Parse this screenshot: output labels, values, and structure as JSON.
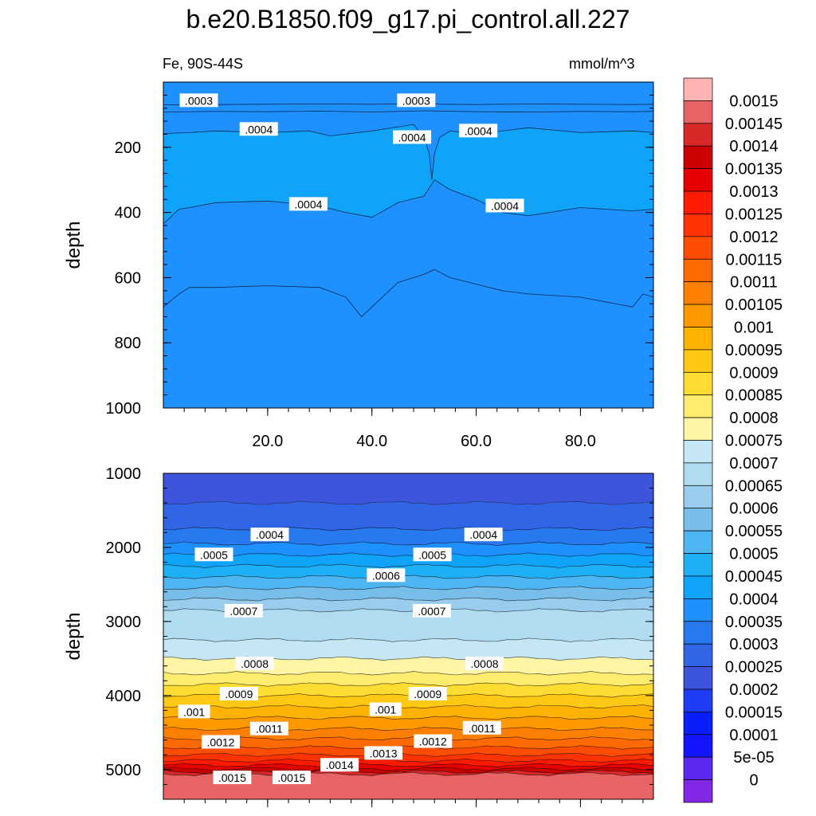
{
  "title": "b.e20.B1850.f09_g17.pi_control.all.227",
  "left_subtitle": "Fe, 90S-44S",
  "right_subtitle": "mmol/m^3",
  "chart_data": [
    {
      "type": "contour",
      "panel": "upper",
      "variable": "Fe",
      "units": "mmol/m^3",
      "ylabel": "depth",
      "ylim": [
        1000,
        0
      ],
      "y_ticks": [
        200,
        400,
        600,
        800,
        1000
      ],
      "xlim": [
        0,
        94
      ],
      "x_ticks": [
        20,
        40,
        60,
        80
      ],
      "x_tick_labels": [
        "20.0",
        "40.0",
        "60.0",
        "80.0"
      ],
      "contour_lines": [
        {
          "level": 0.0003,
          "x": [
            0,
            10,
            20,
            30,
            40,
            50,
            51,
            52,
            53,
            60,
            70,
            80,
            90,
            94
          ],
          "y": [
            70,
            69,
            68,
            67,
            68,
            66,
            60,
            66,
            68,
            69,
            67,
            68,
            69,
            68
          ]
        },
        {
          "level": 0.00035,
          "x": [
            0,
            10,
            20,
            30,
            40,
            50,
            60,
            70,
            80,
            90,
            94
          ],
          "y": [
            92,
            90,
            91,
            89,
            92,
            88,
            91,
            92,
            90,
            91,
            90
          ]
        },
        {
          "level": 0.0004,
          "x": [
            0,
            5,
            10,
            20,
            28,
            32,
            40,
            48,
            50,
            51,
            51.5,
            52,
            53,
            55,
            60,
            70,
            80,
            90,
            94
          ],
          "y": [
            158,
            155,
            150,
            155,
            150,
            165,
            150,
            130,
            170,
            220,
            300,
            220,
            170,
            150,
            160,
            140,
            155,
            150,
            155
          ]
        },
        {
          "level": 0.0004,
          "x": [
            0,
            3,
            5,
            10,
            20,
            30,
            35,
            40,
            45,
            50,
            52,
            55,
            60,
            65,
            70,
            80,
            90,
            94
          ],
          "y": [
            435,
            390,
            385,
            370,
            365,
            380,
            400,
            415,
            370,
            350,
            300,
            330,
            360,
            400,
            410,
            385,
            395,
            390
          ]
        },
        {
          "level": 0.00035,
          "x": [
            0,
            3,
            5,
            10,
            20,
            30,
            35,
            38,
            40,
            45,
            50,
            52,
            55,
            60,
            65,
            70,
            80,
            90,
            92,
            94
          ],
          "y": [
            690,
            650,
            630,
            630,
            625,
            630,
            660,
            720,
            690,
            615,
            590,
            575,
            600,
            620,
            640,
            650,
            660,
            690,
            650,
            660
          ]
        }
      ],
      "labels": [
        {
          "text": ".0003",
          "x": 6.8,
          "y": 57
        },
        {
          "text": ".0003",
          "x": 48.5,
          "y": 57
        },
        {
          "text": ".0004",
          "x": 18.3,
          "y": 145
        },
        {
          "text": ".0004",
          "x": 47.7,
          "y": 170
        },
        {
          "text": ".0004",
          "x": 60.4,
          "y": 150
        },
        {
          "text": ".0004",
          "x": 27.8,
          "y": 375
        },
        {
          "text": ".0004",
          "x": 65.5,
          "y": 380
        }
      ]
    },
    {
      "type": "contour",
      "panel": "lower",
      "variable": "Fe",
      "units": "mmol/m^3",
      "ylabel": "depth",
      "ylim": [
        5400,
        1000
      ],
      "y_ticks": [
        1000,
        2000,
        3000,
        4000,
        5000
      ],
      "xlim": [
        0,
        94
      ],
      "x_ticks": [
        20,
        40,
        60,
        80
      ],
      "bands": [
        {
          "lower": 0.00025,
          "upper": 0.0003,
          "top": 1000,
          "bottom": 1400
        },
        {
          "lower": 0.0003,
          "upper": 0.00035,
          "top": 1400,
          "bottom": 1750
        },
        {
          "lower": 0.00035,
          "upper": 0.0004,
          "top": 1750,
          "bottom": 1950
        },
        {
          "lower": 0.0004,
          "upper": 0.00045,
          "top": 1950,
          "bottom": 2100
        },
        {
          "lower": 0.00045,
          "upper": 0.0005,
          "top": 2100,
          "bottom": 2250
        },
        {
          "lower": 0.0005,
          "upper": 0.00055,
          "top": 2250,
          "bottom": 2400
        },
        {
          "lower": 0.00055,
          "upper": 0.0006,
          "top": 2400,
          "bottom": 2550
        },
        {
          "lower": 0.0006,
          "upper": 0.00065,
          "top": 2550,
          "bottom": 2700
        },
        {
          "lower": 0.00065,
          "upper": 0.0007,
          "top": 2700,
          "bottom": 2850
        },
        {
          "lower": 0.0007,
          "upper": 0.00075,
          "top": 2850,
          "bottom": 3250
        },
        {
          "lower": 0.00075,
          "upper": 0.0008,
          "top": 3250,
          "bottom": 3500
        },
        {
          "lower": 0.0008,
          "upper": 0.00085,
          "top": 3500,
          "bottom": 3700
        },
        {
          "lower": 0.00085,
          "upper": 0.0009,
          "top": 3700,
          "bottom": 3850
        },
        {
          "lower": 0.0009,
          "upper": 0.00095,
          "top": 3850,
          "bottom": 4000
        },
        {
          "lower": 0.00095,
          "upper": 0.001,
          "top": 4000,
          "bottom": 4150
        },
        {
          "lower": 0.001,
          "upper": 0.00105,
          "top": 4150,
          "bottom": 4300
        },
        {
          "lower": 0.00105,
          "upper": 0.0011,
          "top": 4300,
          "bottom": 4450
        },
        {
          "lower": 0.0011,
          "upper": 0.00115,
          "top": 4450,
          "bottom": 4580
        },
        {
          "lower": 0.00115,
          "upper": 0.0012,
          "top": 4580,
          "bottom": 4700
        },
        {
          "lower": 0.0012,
          "upper": 0.00125,
          "top": 4700,
          "bottom": 4800
        },
        {
          "lower": 0.00125,
          "upper": 0.0013,
          "top": 4800,
          "bottom": 4880
        },
        {
          "lower": 0.0013,
          "upper": 0.00135,
          "top": 4880,
          "bottom": 4940
        },
        {
          "lower": 0.00135,
          "upper": 0.0014,
          "top": 4940,
          "bottom": 4990
        },
        {
          "lower": 0.0014,
          "upper": 0.00145,
          "top": 4990,
          "bottom": 5030
        },
        {
          "lower": 0.00145,
          "upper": 0.0015,
          "top": 5030,
          "bottom": 5060
        },
        {
          "lower": 0.0015,
          "upper": 0.00155,
          "top": 5060,
          "bottom": 5400
        }
      ],
      "labels": [
        {
          "text": ".0004",
          "x": 20.4,
          "y": 1830
        },
        {
          "text": ".0004",
          "x": 61.4,
          "y": 1830
        },
        {
          "text": ".0005",
          "x": 9.7,
          "y": 2100
        },
        {
          "text": ".0005",
          "x": 51.6,
          "y": 2100
        },
        {
          "text": ".0006",
          "x": 42.7,
          "y": 2380
        },
        {
          "text": ".0007",
          "x": 15.4,
          "y": 2860
        },
        {
          "text": ".0007",
          "x": 51.5,
          "y": 2860
        },
        {
          "text": ".0008",
          "x": 17.5,
          "y": 3570
        },
        {
          "text": ".0008",
          "x": 61.6,
          "y": 3570
        },
        {
          "text": ".0009",
          "x": 14.5,
          "y": 3980
        },
        {
          "text": ".0009",
          "x": 50.7,
          "y": 3980
        },
        {
          "text": ".001",
          "x": 5.9,
          "y": 4220
        },
        {
          "text": ".001",
          "x": 42.6,
          "y": 4190
        },
        {
          "text": ".0011",
          "x": 20.3,
          "y": 4450
        },
        {
          "text": ".0011",
          "x": 61.1,
          "y": 4440
        },
        {
          "text": ".0012",
          "x": 11.0,
          "y": 4630
        },
        {
          "text": ".0012",
          "x": 51.7,
          "y": 4620
        },
        {
          "text": ".0013",
          "x": 42.2,
          "y": 4780
        },
        {
          "text": ".0014",
          "x": 33.8,
          "y": 4940
        },
        {
          "text": ".0015",
          "x": 13.2,
          "y": 5110
        },
        {
          "text": ".0015",
          "x": 24.6,
          "y": 5110
        }
      ]
    }
  ],
  "colorbar": {
    "levels": [
      "0.0015",
      "0.00145",
      "0.0014",
      "0.00135",
      "0.0013",
      "0.00125",
      "0.0012",
      "0.00115",
      "0.0011",
      "0.00105",
      "0.001",
      "0.00095",
      "0.0009",
      "0.00085",
      "0.0008",
      "0.00075",
      "0.0007",
      "0.00065",
      "0.0006",
      "0.00055",
      "0.0005",
      "0.00045",
      "0.0004",
      "0.00035",
      "0.0003",
      "0.00025",
      "0.0002",
      "0.00015",
      "0.0001",
      "5e-05",
      "0"
    ],
    "colors": [
      "#FFB3B3",
      "#E86464",
      "#D82828",
      "#CC0000",
      "#E60000",
      "#FF1A00",
      "#FF3300",
      "#FF4D00",
      "#FF6A00",
      "#FF8000",
      "#FF9900",
      "#FFB300",
      "#FFC814",
      "#FFDC32",
      "#FFEB6E",
      "#FFF5A5",
      "#C5E6F5",
      "#B0DCF2",
      "#9ACDED",
      "#78BEEA",
      "#4DB6F2",
      "#1FAFF5",
      "#10A3FA",
      "#1E90FF",
      "#2878F0",
      "#3264E6",
      "#3C55DC",
      "#1E3CF5",
      "#0A1EFA",
      "#1414FF",
      "#5A28F0",
      "#8228E6"
    ]
  },
  "upper_fill": {
    "main": "#1E90FF",
    "top": "#2878F0",
    "mid": "#10A3FA"
  }
}
